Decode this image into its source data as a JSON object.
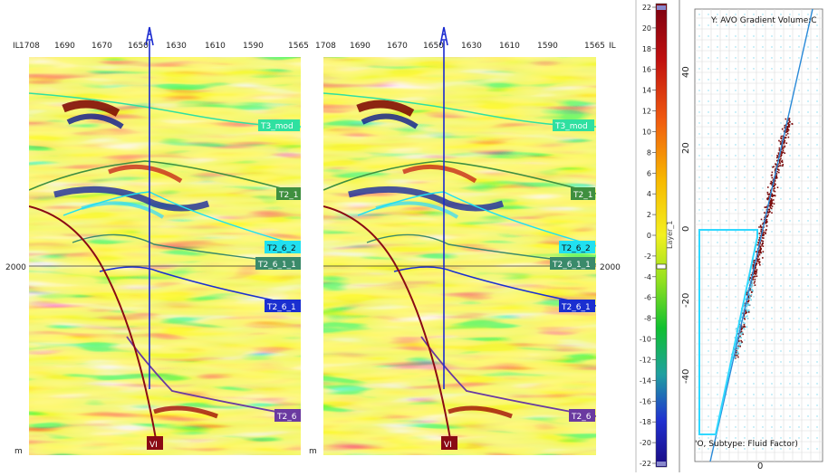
{
  "section_left": {
    "il_label": "IL",
    "il_ticks": [
      "1708",
      "1690",
      "1670",
      "1650",
      "1630",
      "1610",
      "1590",
      "1565"
    ],
    "depth_label": "2000",
    "unit_label": "m"
  },
  "section_right": {
    "il_label": "IL",
    "il_ticks": [
      "1708",
      "1690",
      "1670",
      "1650",
      "1630",
      "1610",
      "1590",
      "1565"
    ],
    "depth_label": "2000",
    "unit_label": "m"
  },
  "horizons": [
    {
      "id": "t3",
      "label": "T3_mod",
      "color": "#2fe0a0",
      "text_color": "#ffffff"
    },
    {
      "id": "t2_1",
      "label": "T2_1",
      "color": "#3f8f3f",
      "text_color": "#ffffff"
    },
    {
      "id": "t2_6_2",
      "label": "T2_6_2",
      "color": "#20e0f0",
      "text_color": "#111111"
    },
    {
      "id": "t2_6_1_1",
      "label": "T2_6_1_1",
      "color": "#3a8a6a",
      "text_color": "#ffffff"
    },
    {
      "id": "t2_6_1",
      "label": "T2_6_1",
      "color": "#1a2fd0",
      "text_color": "#ffffff"
    },
    {
      "id": "t2_6",
      "label": "T2_6",
      "color": "#6a3aa0",
      "text_color": "#ffffff"
    }
  ],
  "fault": {
    "label": "VI",
    "color": "#8a0a14"
  },
  "colorbar": {
    "ticks": [
      "22",
      "20",
      "18",
      "16",
      "14",
      "12",
      "10",
      "8",
      "6",
      "4",
      "2",
      "0",
      "-2",
      "-4",
      "-6",
      "-8",
      "-10",
      "-12",
      "-14",
      "-16",
      "-18",
      "-20",
      "-22"
    ],
    "layer_label": "Layer_1"
  },
  "crossplot": {
    "title": "Y: AVO Gradient Volume:C",
    "x_axis_label": "'O, Subtype: Fluid Factor)",
    "y_ticks": [
      "40",
      "20",
      "0",
      "-20",
      "-40"
    ],
    "x_tick": "0"
  },
  "colors": {
    "seis_bg": "#e9f040",
    "polygon": "#30d8ff",
    "trend_line": "#2a8ad8",
    "cloud_red": "#7a0a0a",
    "cloud_cyan": "#6ad0e8"
  }
}
